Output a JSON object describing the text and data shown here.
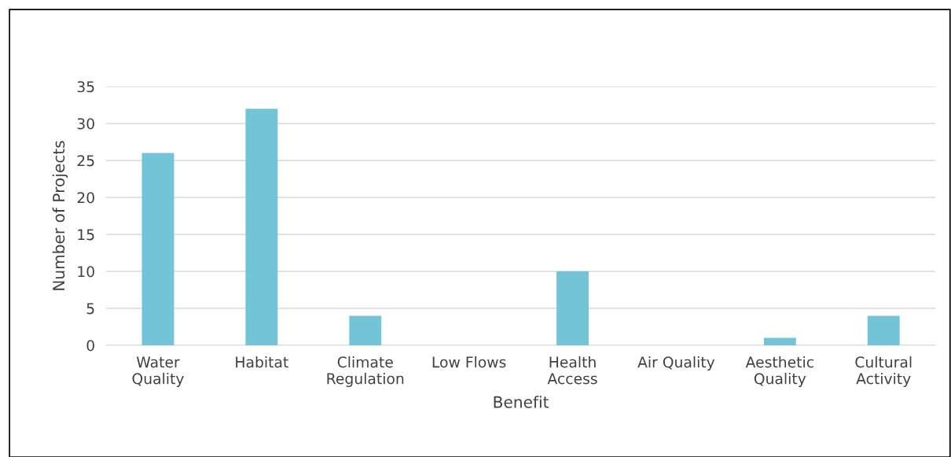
{
  "chart_data": {
    "type": "bar",
    "xlabel": "Benefit",
    "ylabel": "Number of Projects",
    "categories": [
      "Water\nQuality",
      "Habitat",
      "Climate\nRegulation",
      "Low Flows",
      "Health\nAccess",
      "Air Quality",
      "Aesthetic\nQuality",
      "Cultural\nActivity"
    ],
    "values": [
      26,
      32,
      4,
      0,
      10,
      0,
      1,
      4
    ],
    "color": "#72c4d6",
    "ylim": [
      0,
      35
    ],
    "yticks": [
      0,
      5,
      10,
      15,
      20,
      25,
      30,
      35
    ],
    "grid": "y",
    "legend": false
  }
}
